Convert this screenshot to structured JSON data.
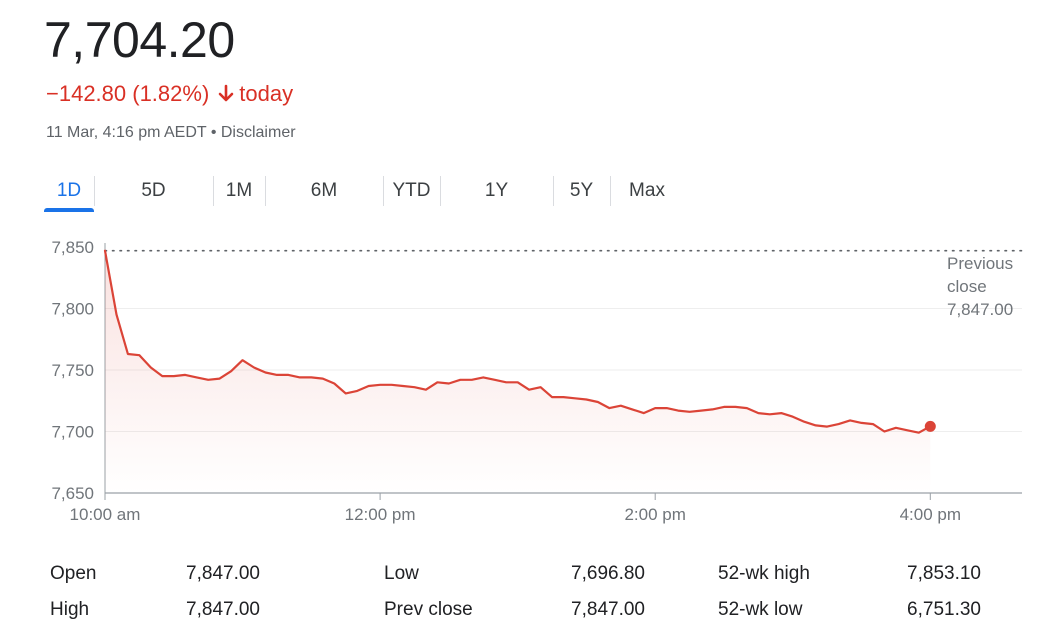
{
  "header": {
    "price": "7,704.20",
    "change_text": "−142.80 (1.82%)",
    "change_suffix": "today",
    "timestamp": "11 Mar, 4:16 pm AEDT • Disclaimer"
  },
  "tabs": [
    {
      "label": "1D",
      "active": true
    },
    {
      "label": "5D",
      "active": false
    },
    {
      "label": "1M",
      "active": false
    },
    {
      "label": "6M",
      "active": false
    },
    {
      "label": "YTD",
      "active": false
    },
    {
      "label": "1Y",
      "active": false
    },
    {
      "label": "5Y",
      "active": false
    },
    {
      "label": "Max",
      "active": false
    }
  ],
  "colors": {
    "line": "#db4437",
    "negative": "#d93025",
    "active_tab": "#1a73e8",
    "grid": "#eeeeee",
    "axis": "#9aa0a6"
  },
  "chart_data": {
    "type": "line",
    "y_ticks": [
      "7,850",
      "7,800",
      "7,750",
      "7,700",
      "7,650"
    ],
    "y_tick_values": [
      7850,
      7800,
      7750,
      7700,
      7650
    ],
    "x_ticks": [
      "10:00 am",
      "12:00 pm",
      "2:00 pm",
      "4:00 pm"
    ],
    "x_tick_values": [
      0,
      120,
      240,
      360
    ],
    "ylim": [
      7650,
      7850
    ],
    "xlim": [
      0,
      400
    ],
    "grid": true,
    "previous_close": {
      "value": 7847.0,
      "label_line1": "Previous",
      "label_line2": "close",
      "label_value": "7,847.00"
    },
    "series": [
      {
        "x": [
          0,
          5,
          10,
          15,
          20,
          25,
          30,
          35,
          40,
          45,
          50,
          55,
          60,
          65,
          70,
          75,
          80,
          85,
          90,
          95,
          100,
          105,
          110,
          115,
          120,
          125,
          130,
          135,
          140,
          145,
          150,
          155,
          160,
          165,
          170,
          175,
          180,
          185,
          190,
          195,
          200,
          205,
          210,
          215,
          220,
          225,
          230,
          235,
          240,
          245,
          250,
          255,
          260,
          265,
          270,
          275,
          280,
          285,
          290,
          295,
          300,
          305,
          310,
          315,
          320,
          325,
          330,
          335,
          340,
          345,
          350,
          355,
          360
        ],
        "y": [
          7847,
          7795,
          7763,
          7762,
          7752,
          7745,
          7745,
          7746,
          7744,
          7742,
          7743,
          7749,
          7758,
          7752,
          7748,
          7746,
          7746,
          7744,
          7744,
          7743,
          7739,
          7731,
          7733,
          7737,
          7738,
          7738,
          7737,
          7736,
          7734,
          7740,
          7739,
          7742,
          7742,
          7744,
          7742,
          7740,
          7740,
          7734,
          7736,
          7728,
          7728,
          7727,
          7726,
          7724,
          7719,
          7721,
          7718,
          7715,
          7719,
          7719,
          7717,
          7716,
          7717,
          7718,
          7720,
          7720,
          7719,
          7715,
          7714,
          7715,
          7712,
          7708,
          7705,
          7704,
          7706,
          7709,
          7707,
          7706,
          7700,
          7703,
          7701,
          7699,
          7704.2
        ]
      }
    ]
  },
  "stats": {
    "rows": [
      [
        {
          "label": "Open",
          "value": "7,847.00"
        },
        {
          "label": "Low",
          "value": "7,696.80"
        },
        {
          "label": "52-wk high",
          "value": "7,853.10"
        }
      ],
      [
        {
          "label": "High",
          "value": "7,847.00"
        },
        {
          "label": "Prev close",
          "value": "7,847.00"
        },
        {
          "label": "52-wk low",
          "value": "6,751.30"
        }
      ]
    ]
  }
}
